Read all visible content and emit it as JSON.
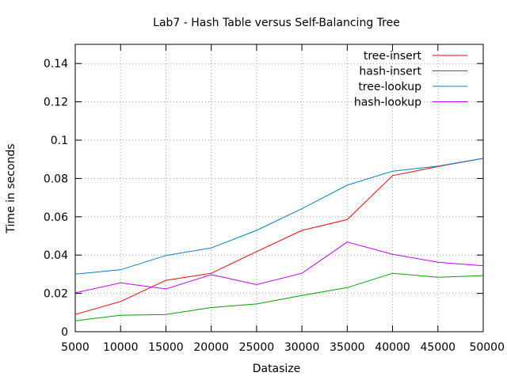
{
  "chart_data": {
    "type": "line",
    "title": "Lab7 - Hash Table versus Self-Balancing Tree",
    "xlabel": "Datasize",
    "ylabel": "Time in seconds",
    "xlim": [
      5000,
      50000
    ],
    "ylim": [
      0,
      0.15
    ],
    "x_ticks": [
      "5000",
      "10000",
      "15000",
      "20000",
      "25000",
      "30000",
      "35000",
      "40000",
      "45000",
      "50000"
    ],
    "y_ticks": [
      "0",
      "0.02",
      "0.04",
      "0.06",
      "0.08",
      "0.1",
      "0.12",
      "0.14"
    ],
    "grid": true,
    "legend_position": "top-right",
    "x": [
      5000,
      10000,
      15000,
      20000,
      25000,
      30000,
      35000,
      40000,
      45000,
      50000
    ],
    "series": [
      {
        "name": "tree-insert",
        "color": "#ff0000",
        "values": [
          0.009,
          0.0158,
          0.0268,
          0.0305,
          0.0418,
          0.0529,
          0.0585,
          0.0815,
          0.0862,
          0.0905
        ]
      },
      {
        "name": "hash-insert",
        "color": "#00a000",
        "values": [
          0.0057,
          0.0086,
          0.009,
          0.0126,
          0.0145,
          0.0189,
          0.023,
          0.0305,
          0.0284,
          0.0293
        ]
      },
      {
        "name": "tree-lookup",
        "color": "#0080c0",
        "values": [
          0.0301,
          0.0323,
          0.0398,
          0.0437,
          0.0529,
          0.0642,
          0.0765,
          0.0838,
          0.0864,
          0.0905
        ]
      },
      {
        "name": "hash-lookup",
        "color": "#c000ff",
        "values": [
          0.0203,
          0.0255,
          0.0223,
          0.0298,
          0.0246,
          0.0305,
          0.0468,
          0.0404,
          0.0363,
          0.0344
        ]
      }
    ]
  }
}
